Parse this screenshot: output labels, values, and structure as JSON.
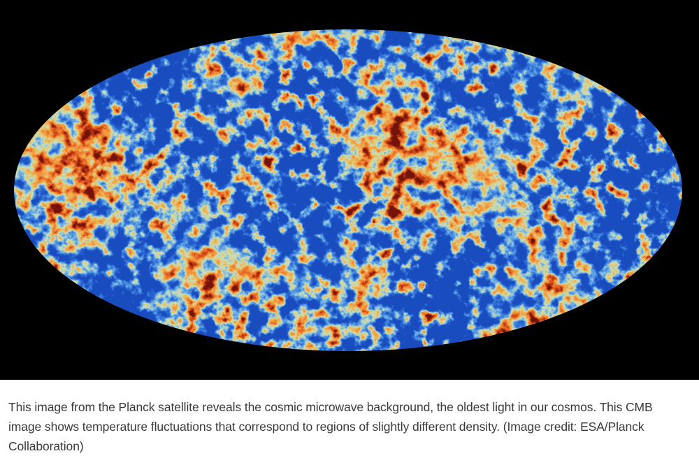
{
  "figure": {
    "subject": "cosmic microwave background all-sky map",
    "colors": {
      "background": "#000000",
      "cold": "#1f5ac8",
      "cool": "#64aae6",
      "neutral": "#e6e1b4",
      "warm": "#f0963c",
      "hot": "#c83c14"
    }
  },
  "caption": {
    "text": "This image from the Planck satellite reveals the cosmic microwave background, the oldest light in our cosmos. This CMB image shows temperature fluctuations that correspond to regions of slightly different density. (Image credit: ESA/Planck Collaboration)"
  }
}
